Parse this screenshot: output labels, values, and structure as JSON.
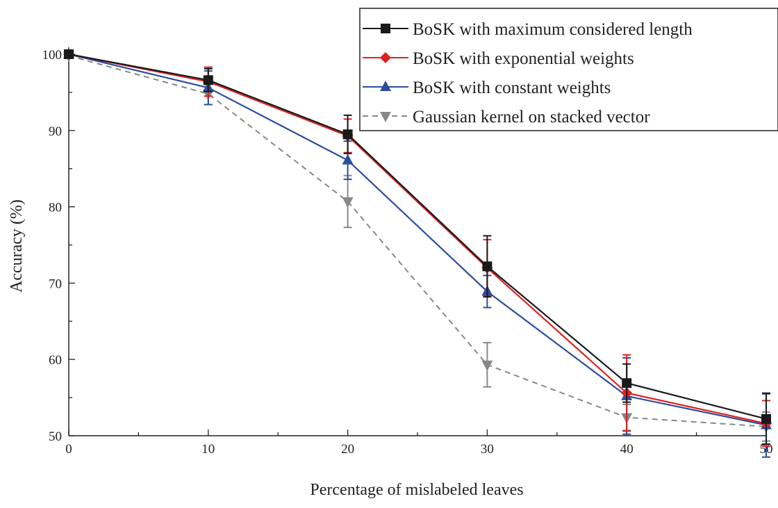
{
  "chart_data": {
    "type": "line",
    "title": "",
    "xlabel": "Percentage of mislabeled leaves",
    "ylabel": "Accuracy (%)",
    "xlim": [
      0,
      50
    ],
    "ylim": [
      50,
      100
    ],
    "x_ticks": [
      0,
      10,
      20,
      30,
      40,
      50
    ],
    "x_tick_labels": [
      "0",
      "10",
      "20",
      "30",
      "40",
      "50"
    ],
    "y_ticks": [
      50,
      60,
      70,
      80,
      90,
      100
    ],
    "y_tick_labels": [
      "50",
      "60",
      "70",
      "80",
      "90",
      "100"
    ],
    "grid": false,
    "legend_position": "top-right",
    "x": [
      0,
      10,
      20,
      30,
      40,
      50
    ],
    "series": [
      {
        "name": "BoSK with maximum considered length",
        "color": "#1a1a1a",
        "marker": "square",
        "dash": false,
        "values": [
          100,
          96.6,
          89.5,
          72.2,
          56.9,
          52.2
        ],
        "error": [
          0,
          1.5,
          2.5,
          4.0,
          2.5,
          3.3
        ]
      },
      {
        "name": "BoSK with exponential weights",
        "color": "#e0201f",
        "marker": "diamond",
        "dash": false,
        "values": [
          100,
          96.4,
          89.3,
          72.0,
          55.6,
          51.6
        ],
        "error": [
          0,
          1.9,
          2.2,
          3.7,
          5.0,
          3.0
        ]
      },
      {
        "name": "BoSK with constant weights",
        "color": "#2b4da0",
        "marker": "triangle-up",
        "dash": false,
        "values": [
          100,
          95.6,
          86.1,
          68.9,
          55.2,
          51.4
        ],
        "error": [
          0,
          2.2,
          2.5,
          2.1,
          5.0,
          4.2
        ]
      },
      {
        "name": "Gaussian kernel on stacked vector",
        "color": "#888888",
        "marker": "triangle-down",
        "dash": true,
        "values": [
          99.8,
          94.8,
          80.7,
          59.3,
          52.4,
          51.2
        ],
        "error": [
          0,
          1.4,
          3.4,
          2.9,
          1.7,
          1.9
        ]
      }
    ]
  }
}
